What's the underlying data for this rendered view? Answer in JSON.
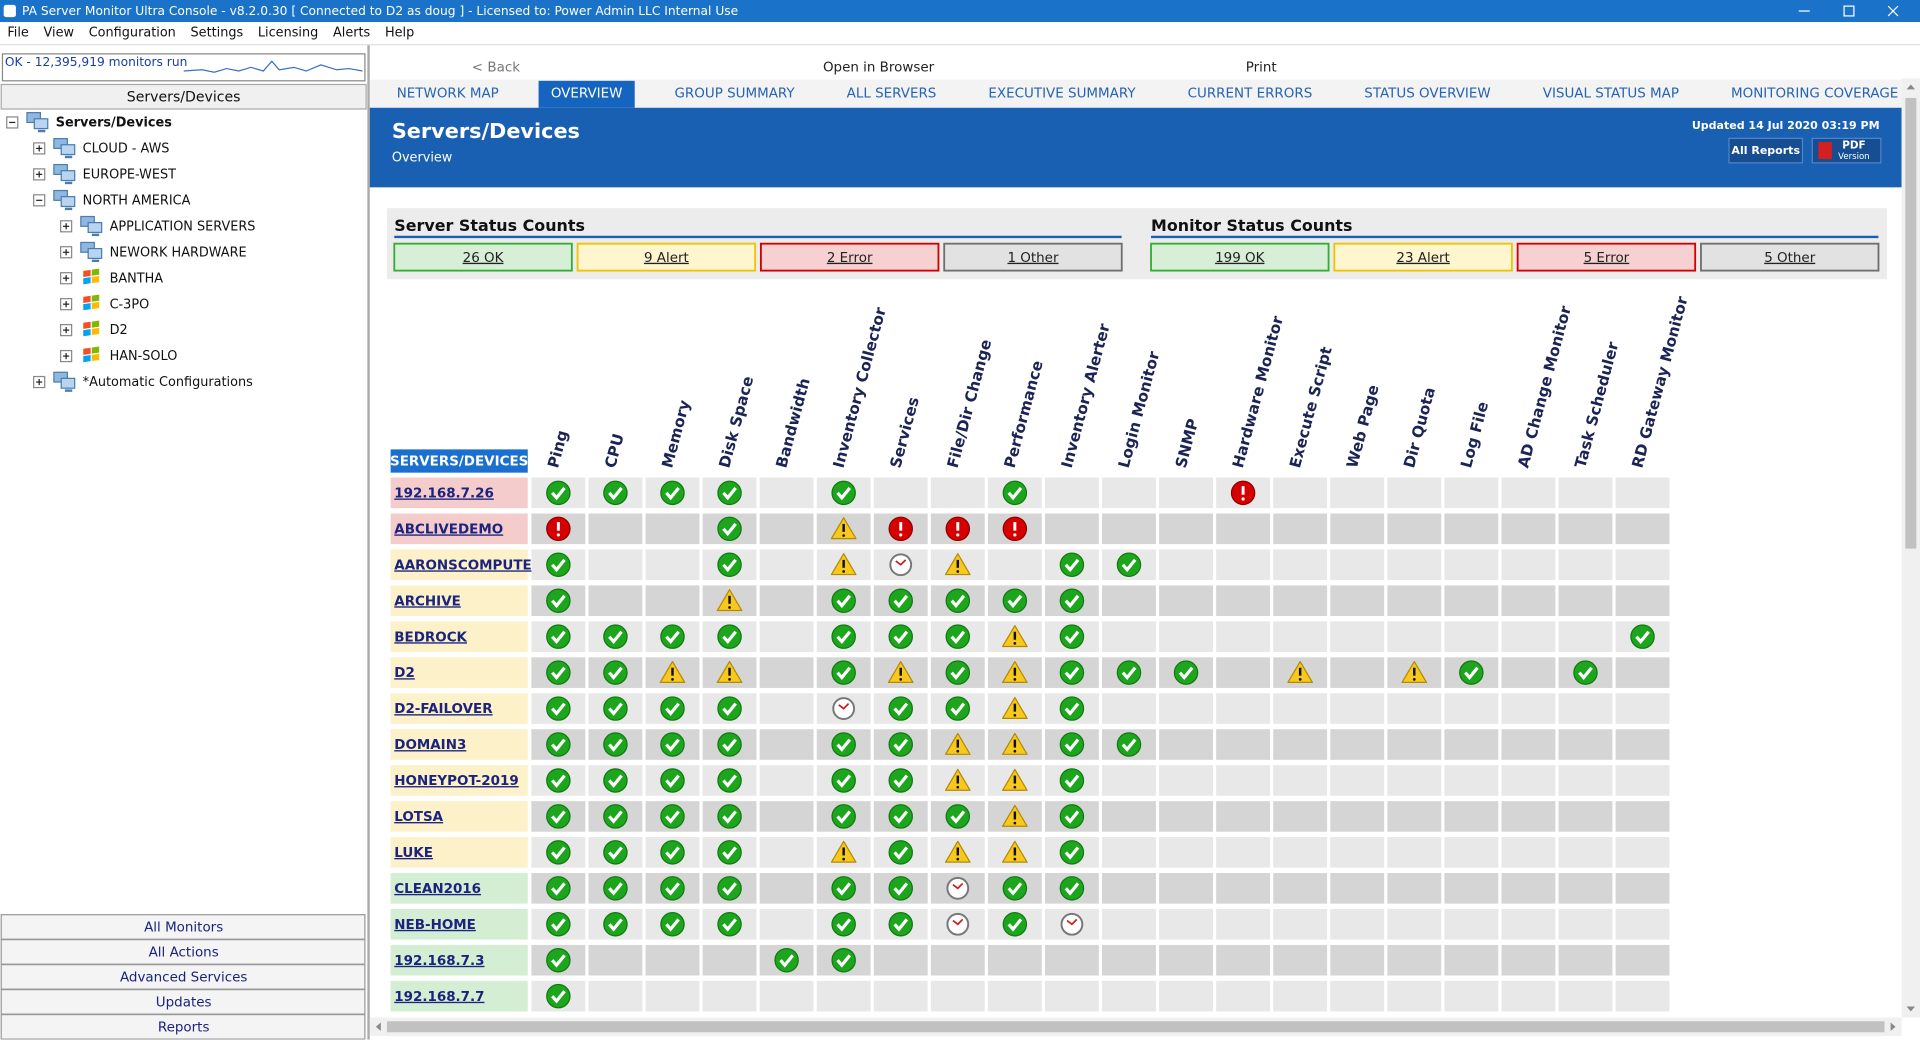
{
  "window": {
    "title": "PA Server Monitor Ultra Console - v8.2.0.30  [ Connected to D2 as doug ] - Licensed to: Power Admin LLC Internal Use"
  },
  "menu": [
    "File",
    "View",
    "Configuration",
    "Settings",
    "Licensing",
    "Alerts",
    "Help"
  ],
  "sidebar": {
    "status": "OK - 12,395,919 monitors run",
    "header": "Servers/Devices",
    "tree": [
      {
        "label": "Servers/Devices",
        "icon": "group",
        "expander": "minus",
        "bold": true,
        "children": [
          {
            "label": "CLOUD - AWS",
            "icon": "group",
            "expander": "plus"
          },
          {
            "label": "EUROPE-WEST",
            "icon": "group",
            "expander": "plus"
          },
          {
            "label": "NORTH AMERICA",
            "icon": "group",
            "expander": "minus",
            "children": [
              {
                "label": "APPLICATION SERVERS",
                "icon": "group",
                "expander": "plus"
              },
              {
                "label": "NEWORK HARDWARE",
                "icon": "group",
                "expander": "plus"
              },
              {
                "label": "BANTHA",
                "icon": "windows",
                "expander": "plus"
              },
              {
                "label": "C-3PO",
                "icon": "windows",
                "expander": "plus"
              },
              {
                "label": "D2",
                "icon": "windows",
                "expander": "plus"
              },
              {
                "label": "HAN-SOLO",
                "icon": "windows",
                "expander": "plus"
              }
            ]
          },
          {
            "label": "*Automatic Configurations",
            "icon": "group",
            "expander": "plus"
          }
        ]
      }
    ],
    "buttons": [
      "All Monitors",
      "All Actions",
      "Advanced Services",
      "Updates",
      "Reports"
    ]
  },
  "toolbar": [
    "< Back",
    "Open in Browser",
    "Print"
  ],
  "tabs": [
    {
      "label": "NETWORK MAP"
    },
    {
      "label": "OVERVIEW",
      "active": true
    },
    {
      "label": "GROUP SUMMARY"
    },
    {
      "label": "ALL SERVERS"
    },
    {
      "label": "EXECUTIVE SUMMARY"
    },
    {
      "label": "CURRENT ERRORS"
    },
    {
      "label": "STATUS OVERVIEW"
    },
    {
      "label": "VISUAL STATUS MAP"
    },
    {
      "label": "MONITORING COVERAGE"
    }
  ],
  "banner": {
    "title": "Servers/Devices",
    "subtitle": "Overview",
    "updated": "Updated 14 Jul 2020 03:19 PM",
    "all_reports": "All Reports",
    "pdf": "PDF",
    "pdf_sub": "Version"
  },
  "counts": [
    {
      "title": "Server Status Counts",
      "items": [
        {
          "label": "26 OK",
          "status": "ok"
        },
        {
          "label": "9 Alert",
          "status": "alert"
        },
        {
          "label": "2 Error",
          "status": "error"
        },
        {
          "label": "1 Other",
          "status": "other"
        }
      ]
    },
    {
      "title": "Monitor Status Counts",
      "items": [
        {
          "label": "199 OK",
          "status": "ok"
        },
        {
          "label": "23 Alert",
          "status": "alert"
        },
        {
          "label": "5 Error",
          "status": "error"
        },
        {
          "label": "5 Other",
          "status": "other"
        }
      ]
    }
  ],
  "grid": {
    "header": "SERVERS/DEVICES",
    "columns": [
      "Ping",
      "CPU",
      "Memory",
      "Disk Space",
      "Bandwidth",
      "Inventory Collector",
      "Services",
      "File/Dir Change",
      "Performance",
      "Inventory Alerter",
      "Login Monitor",
      "SNMP",
      "Hardware Monitor",
      "Execute Script",
      "Web Page",
      "Dir Quota",
      "Log File",
      "AD Change Monitor",
      "Task Scheduler",
      "RD Gateway Monitor"
    ],
    "rows": [
      {
        "name": "192.168.7.26",
        "status": "error",
        "cells": [
          "ok",
          "ok",
          "ok",
          "ok",
          null,
          "ok",
          null,
          null,
          "ok",
          null,
          null,
          null,
          "error",
          null,
          null,
          null,
          null,
          null,
          null,
          null
        ]
      },
      {
        "name": "ABCLIVEDEMO",
        "status": "error",
        "cells": [
          "error",
          null,
          null,
          "ok",
          null,
          "alert",
          "error",
          "error",
          "error",
          null,
          null,
          null,
          null,
          null,
          null,
          null,
          null,
          null,
          null,
          null
        ]
      },
      {
        "name": "AARONSCOMPUTER",
        "status": "alert",
        "cells": [
          "ok",
          null,
          null,
          "ok",
          null,
          "alert",
          "pending",
          "alert",
          null,
          "ok",
          "ok",
          null,
          null,
          null,
          null,
          null,
          null,
          null,
          null,
          null
        ]
      },
      {
        "name": "ARCHIVE",
        "status": "alert",
        "cells": [
          "ok",
          null,
          null,
          "alert",
          null,
          "ok",
          "ok",
          "ok",
          "ok",
          "ok",
          null,
          null,
          null,
          null,
          null,
          null,
          null,
          null,
          null,
          null
        ]
      },
      {
        "name": "BEDROCK",
        "status": "alert",
        "cells": [
          "ok",
          "ok",
          "ok",
          "ok",
          null,
          "ok",
          "ok",
          "ok",
          "alert",
          "ok",
          null,
          null,
          null,
          null,
          null,
          null,
          null,
          null,
          null,
          "ok"
        ]
      },
      {
        "name": "D2",
        "status": "alert",
        "cells": [
          "ok",
          "ok",
          "alert",
          "alert",
          null,
          "ok",
          "alert",
          "ok",
          "alert",
          "ok",
          "ok",
          "ok",
          null,
          "alert",
          null,
          "alert",
          "ok",
          null,
          "ok",
          null
        ]
      },
      {
        "name": "D2-FAILOVER",
        "status": "alert",
        "cells": [
          "ok",
          "ok",
          "ok",
          "ok",
          null,
          "pending",
          "ok",
          "ok",
          "alert",
          "ok",
          null,
          null,
          null,
          null,
          null,
          null,
          null,
          null,
          null,
          null
        ]
      },
      {
        "name": "DOMAIN3",
        "status": "alert",
        "cells": [
          "ok",
          "ok",
          "ok",
          "ok",
          null,
          "ok",
          "ok",
          "alert",
          "alert",
          "ok",
          "ok",
          null,
          null,
          null,
          null,
          null,
          null,
          null,
          null,
          null
        ]
      },
      {
        "name": "HONEYPOT-2019",
        "status": "alert",
        "cells": [
          "ok",
          "ok",
          "ok",
          "ok",
          null,
          "ok",
          "ok",
          "alert",
          "alert",
          "ok",
          null,
          null,
          null,
          null,
          null,
          null,
          null,
          null,
          null,
          null
        ]
      },
      {
        "name": "LOTSA",
        "status": "alert",
        "cells": [
          "ok",
          "ok",
          "ok",
          "ok",
          null,
          "ok",
          "ok",
          "ok",
          "alert",
          "ok",
          null,
          null,
          null,
          null,
          null,
          null,
          null,
          null,
          null,
          null
        ]
      },
      {
        "name": "LUKE",
        "status": "alert",
        "cells": [
          "ok",
          "ok",
          "ok",
          "ok",
          null,
          "alert",
          "ok",
          "alert",
          "alert",
          "ok",
          null,
          null,
          null,
          null,
          null,
          null,
          null,
          null,
          null,
          null
        ]
      },
      {
        "name": "CLEAN2016",
        "status": "ok",
        "cells": [
          "ok",
          "ok",
          "ok",
          "ok",
          null,
          "ok",
          "ok",
          "pending",
          "ok",
          "ok",
          null,
          null,
          null,
          null,
          null,
          null,
          null,
          null,
          null,
          null
        ]
      },
      {
        "name": "NEB-HOME",
        "status": "ok",
        "cells": [
          "ok",
          "ok",
          "ok",
          "ok",
          null,
          "ok",
          "ok",
          "pending",
          "ok",
          "pending",
          null,
          null,
          null,
          null,
          null,
          null,
          null,
          null,
          null,
          null
        ]
      },
      {
        "name": "192.168.7.3",
        "status": "ok",
        "cells": [
          "ok",
          null,
          null,
          null,
          "ok",
          "ok",
          null,
          null,
          null,
          null,
          null,
          null,
          null,
          null,
          null,
          null,
          null,
          null,
          null,
          null
        ]
      },
      {
        "name": "192.168.7.7",
        "status": "ok",
        "cells": [
          "ok",
          null,
          null,
          null,
          null,
          null,
          null,
          null,
          null,
          null,
          null,
          null,
          null,
          null,
          null,
          null,
          null,
          null,
          null,
          null
        ]
      }
    ]
  }
}
